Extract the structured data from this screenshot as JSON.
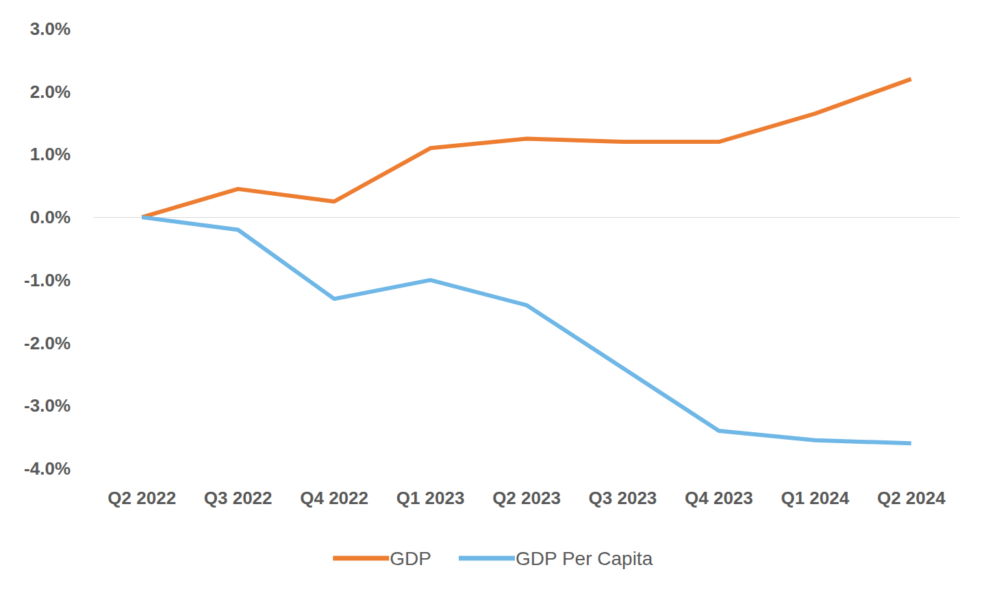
{
  "chart_data": {
    "type": "line",
    "categories": [
      "Q2 2022",
      "Q3 2022",
      "Q4 2022",
      "Q1 2023",
      "Q2 2023",
      "Q3 2023",
      "Q4 2023",
      "Q1 2024",
      "Q2 2024"
    ],
    "series": [
      {
        "name": "GDP",
        "color": "#ed7d31",
        "values": [
          0.0,
          0.45,
          0.25,
          1.1,
          1.25,
          1.2,
          1.2,
          1.65,
          2.2
        ]
      },
      {
        "name": "GDP Per Capita",
        "color": "#6fb7e6",
        "values": [
          0.0,
          -0.2,
          -1.3,
          -1.0,
          -1.4,
          -2.4,
          -3.4,
          -3.55,
          -3.6
        ]
      }
    ],
    "ylim": [
      -4,
      3
    ],
    "yticks": [
      {
        "value": -4,
        "label": "-4.0%"
      },
      {
        "value": -3,
        "label": "-3.0%"
      },
      {
        "value": -2,
        "label": "-2.0%"
      },
      {
        "value": -1,
        "label": "-1.0%"
      },
      {
        "value": 0,
        "label": "0.0%"
      },
      {
        "value": 1,
        "label": "1.0%"
      },
      {
        "value": 2,
        "label": "2.0%"
      },
      {
        "value": 3,
        "label": "3.0%"
      }
    ],
    "grid": false,
    "legend": "bottom",
    "marker": "none",
    "line_style": "solid"
  }
}
